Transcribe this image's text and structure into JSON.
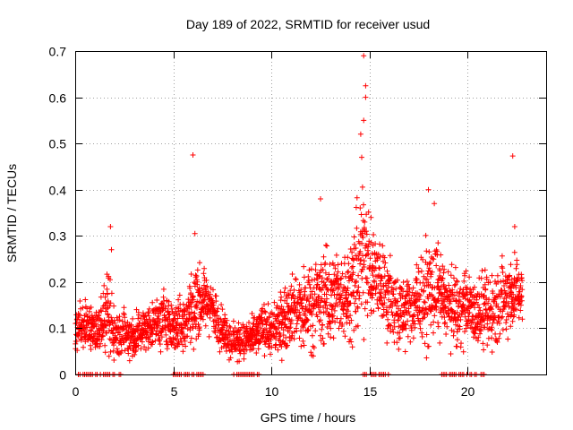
{
  "chart_data": {
    "type": "scatter",
    "title": "Day 189 of 2022, SRMTID for receiver usud",
    "xlabel": "GPS time / hours",
    "ylabel": "SRMTID / TECUs",
    "xlim": [
      0,
      24
    ],
    "ylim": [
      0,
      0.7
    ],
    "x_ticks": [
      "0",
      "5",
      "10",
      "15",
      "20"
    ],
    "x_tick_values": [
      0,
      5,
      10,
      15,
      20
    ],
    "y_ticks": [
      "0",
      "0.1",
      "0.2",
      "0.3",
      "0.4",
      "0.5",
      "0.6",
      "0.7"
    ],
    "y_tick_values": [
      0,
      0.1,
      0.2,
      0.3,
      0.4,
      0.5,
      0.6,
      0.7
    ],
    "grid": true,
    "marker": "+",
    "marker_color": "#ff0000",
    "series": [
      {
        "name": "SRMTID",
        "envelope": {
          "x": [
            0.0,
            0.5,
            1.0,
            1.5,
            1.8,
            2.0,
            2.5,
            3.0,
            3.5,
            4.0,
            4.5,
            5.0,
            5.5,
            6.0,
            6.5,
            7.0,
            7.5,
            8.0,
            8.5,
            9.0,
            9.5,
            10.0,
            10.5,
            11.0,
            11.5,
            12.0,
            12.5,
            13.0,
            13.5,
            14.0,
            14.5,
            14.8,
            15.0,
            15.5,
            16.0,
            16.5,
            17.0,
            17.5,
            18.0,
            18.5,
            19.0,
            19.5,
            20.0,
            20.5,
            21.0,
            21.5,
            22.0,
            22.5,
            22.8
          ],
          "center": [
            0.09,
            0.11,
            0.1,
            0.12,
            0.12,
            0.09,
            0.09,
            0.08,
            0.1,
            0.11,
            0.12,
            0.1,
            0.11,
            0.15,
            0.17,
            0.14,
            0.1,
            0.07,
            0.07,
            0.08,
            0.1,
            0.09,
            0.11,
            0.14,
            0.14,
            0.15,
            0.16,
            0.17,
            0.17,
            0.18,
            0.23,
            0.3,
            0.22,
            0.2,
            0.17,
            0.13,
            0.14,
            0.15,
            0.17,
            0.19,
            0.15,
            0.14,
            0.15,
            0.14,
            0.13,
            0.15,
            0.17,
            0.18,
            0.17
          ],
          "spread": [
            0.04,
            0.04,
            0.04,
            0.05,
            0.08,
            0.04,
            0.04,
            0.04,
            0.04,
            0.04,
            0.05,
            0.04,
            0.05,
            0.07,
            0.05,
            0.05,
            0.04,
            0.03,
            0.03,
            0.03,
            0.04,
            0.04,
            0.05,
            0.06,
            0.06,
            0.07,
            0.08,
            0.08,
            0.07,
            0.09,
            0.12,
            0.16,
            0.08,
            0.07,
            0.07,
            0.06,
            0.06,
            0.07,
            0.09,
            0.07,
            0.06,
            0.06,
            0.06,
            0.06,
            0.06,
            0.07,
            0.07,
            0.06,
            0.05
          ]
        },
        "outliers": [
          {
            "x": 1.8,
            "y": 0.32
          },
          {
            "x": 1.85,
            "y": 0.27
          },
          {
            "x": 6.0,
            "y": 0.475
          },
          {
            "x": 6.1,
            "y": 0.305
          },
          {
            "x": 12.5,
            "y": 0.38
          },
          {
            "x": 14.55,
            "y": 0.52
          },
          {
            "x": 14.7,
            "y": 0.69
          },
          {
            "x": 14.8,
            "y": 0.625
          },
          {
            "x": 14.8,
            "y": 0.6
          },
          {
            "x": 14.7,
            "y": 0.55
          },
          {
            "x": 14.6,
            "y": 0.47
          },
          {
            "x": 18.0,
            "y": 0.4
          },
          {
            "x": 18.3,
            "y": 0.37
          },
          {
            "x": 22.3,
            "y": 0.473
          },
          {
            "x": 22.4,
            "y": 0.32
          }
        ],
        "zero_bands": [
          [
            0.0,
            2.5
          ],
          [
            5.0,
            6.6
          ],
          [
            8.0,
            9.4
          ],
          [
            14.6,
            16.0
          ],
          [
            18.6,
            21.0
          ]
        ]
      }
    ]
  }
}
